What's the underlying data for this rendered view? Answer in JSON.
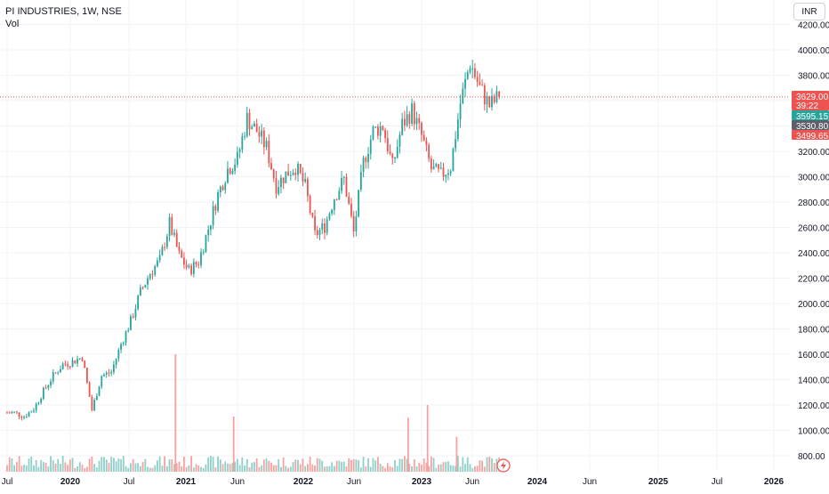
{
  "legend": {
    "symbol": "PI INDUSTRIES, 1W, NSE",
    "volume_label": "Vol"
  },
  "currency_button": "INR",
  "price_labels": {
    "last_price": "3629.00",
    "countdown": "39:22",
    "high_marker": "3595.15",
    "mid_marker": "3530.80",
    "low_marker": "3499.65"
  },
  "colors": {
    "up": "#26a69a",
    "down": "#ef5350",
    "up_vol": "#8fd0c8",
    "down_vol": "#f5a3a1",
    "grid": "#f0f3fa",
    "axis_text": "#131722",
    "price_line": "#ef5350",
    "marker_mid": "#5d606b"
  },
  "chart_data": {
    "type": "candlestick",
    "title": "PI INDUSTRIES, 1W, NSE",
    "currency": "INR",
    "y_ticks": [
      800,
      1000,
      1200,
      1400,
      1600,
      1800,
      2000,
      2200,
      2400,
      2600,
      2800,
      3000,
      3200,
      3400,
      3600,
      3800,
      4000,
      4200
    ],
    "ylim": [
      720,
      4300
    ],
    "x_ticks": [
      "Jul",
      "2020",
      "Jul",
      "2021",
      "Jun",
      "2022",
      "Jun",
      "2023",
      "Jun",
      "2024",
      "Jun",
      "2025",
      "Jul",
      "2026"
    ],
    "last_price": 3629.0,
    "close_series": [
      [
        "2019-07",
        1140
      ],
      [
        "2019-08",
        1110
      ],
      [
        "2019-09",
        1170
      ],
      [
        "2019-10",
        1310
      ],
      [
        "2019-11",
        1430
      ],
      [
        "2019-12",
        1520
      ],
      [
        "2020-01",
        1540
      ],
      [
        "2020-02",
        1580
      ],
      [
        "2020-03",
        1160
      ],
      [
        "2020-04",
        1430
      ],
      [
        "2020-05",
        1460
      ],
      [
        "2020-06",
        1680
      ],
      [
        "2020-07",
        1860
      ],
      [
        "2020-08",
        2090
      ],
      [
        "2020-09",
        2240
      ],
      [
        "2020-10",
        2340
      ],
      [
        "2020-11",
        2630
      ],
      [
        "2020-12",
        2380
      ],
      [
        "2021-01",
        2260
      ],
      [
        "2021-02",
        2330
      ],
      [
        "2021-03",
        2590
      ],
      [
        "2021-04",
        2860
      ],
      [
        "2021-05",
        3060
      ],
      [
        "2021-06",
        3140
      ],
      [
        "2021-07",
        3460
      ],
      [
        "2021-08",
        3360
      ],
      [
        "2021-09",
        3230
      ],
      [
        "2021-10",
        2930
      ],
      [
        "2021-11",
        3020
      ],
      [
        "2021-12",
        3080
      ],
      [
        "2022-01",
        2920
      ],
      [
        "2022-02",
        2540
      ],
      [
        "2022-03",
        2610
      ],
      [
        "2022-04",
        2840
      ],
      [
        "2022-05",
        2980
      ],
      [
        "2022-06",
        2560
      ],
      [
        "2022-07",
        3110
      ],
      [
        "2022-08",
        3360
      ],
      [
        "2022-09",
        3400
      ],
      [
        "2022-10",
        3080
      ],
      [
        "2022-11",
        3410
      ],
      [
        "2022-12",
        3520
      ],
      [
        "2023-01",
        3320
      ],
      [
        "2023-02",
        3060
      ],
      [
        "2023-03",
        3010
      ],
      [
        "2023-04",
        3080
      ],
      [
        "2023-05",
        3580
      ],
      [
        "2023-06",
        3900
      ],
      [
        "2023-07",
        3700
      ],
      [
        "2023-08",
        3560
      ],
      [
        "2023-09",
        3629
      ]
    ],
    "volume_spikes": [
      [
        "2020-12",
        1600
      ],
      [
        "2021-06",
        1110
      ],
      [
        "2023-02",
        1200
      ],
      [
        "2022-12",
        1100
      ],
      [
        "2023-05",
        950
      ]
    ]
  }
}
